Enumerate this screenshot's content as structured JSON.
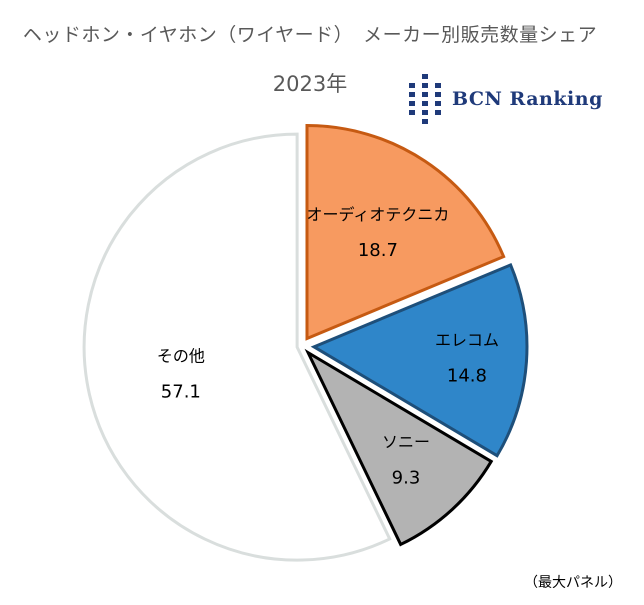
{
  "chart_data": {
    "type": "pie",
    "title": "ヘッドホン・イヤホン（ワイヤード）　メーカー別販売数量シェア",
    "subtitle": "2023年",
    "note": "（最大パネル）",
    "logo_text": "BCN Ranking",
    "start": "12 o'clock",
    "direction": "clockwise",
    "exploded": true,
    "slices": [
      {
        "label": "オーディオテクニカ",
        "value": "18.7",
        "fill": "#f79a60",
        "stroke": "#c65a12"
      },
      {
        "label": "エレコム",
        "value": "14.8",
        "fill": "#2f86c9",
        "stroke": "#1e4f7a"
      },
      {
        "label": "ソニー",
        "value": "9.3",
        "fill": "#b3b3b3",
        "stroke": "#000000"
      },
      {
        "label": "その他",
        "value": "57.1",
        "fill": "#ffffff",
        "stroke": "#d9dedd"
      }
    ]
  }
}
